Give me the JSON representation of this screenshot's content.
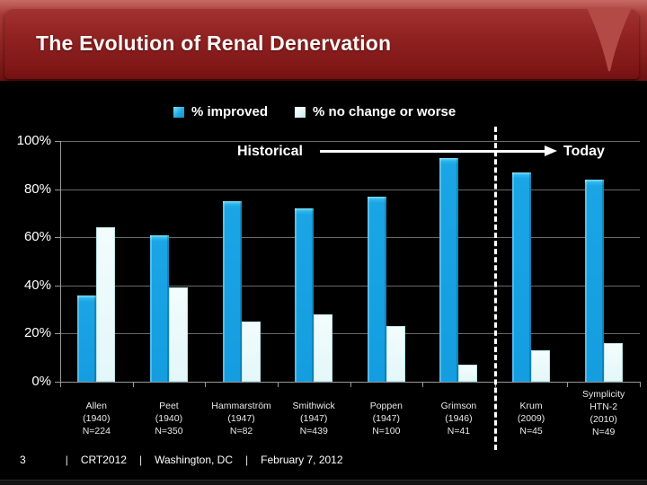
{
  "header": {
    "title": "The Evolution of Renal Denervation"
  },
  "legend": {
    "items": [
      {
        "label": "% improved",
        "color": "#1FA9E5"
      },
      {
        "label": "% no change or worse",
        "color": "#E6FAFB"
      }
    ]
  },
  "annotations": {
    "historical": "Historical",
    "today": "Today"
  },
  "chart_data": {
    "type": "bar",
    "title": "",
    "xlabel": "",
    "ylabel": "",
    "ylim": [
      0,
      100
    ],
    "yticks": [
      {
        "value": 0,
        "label": "0%"
      },
      {
        "value": 20,
        "label": "20%"
      },
      {
        "value": 40,
        "label": "40%"
      },
      {
        "value": 60,
        "label": "60%"
      },
      {
        "value": 80,
        "label": "80%"
      },
      {
        "value": 100,
        "label": "100%"
      }
    ],
    "grid": true,
    "legend_position": "top",
    "divider_at_boundary": 6,
    "categories": [
      {
        "lines": [
          "Allen",
          "(1940)",
          "N=224"
        ]
      },
      {
        "lines": [
          "Peet",
          "(1940)",
          "N=350"
        ]
      },
      {
        "lines": [
          "Hammarström",
          "(1947)",
          "N=82"
        ]
      },
      {
        "lines": [
          "Smithwick",
          "(1947)",
          "N=439"
        ]
      },
      {
        "lines": [
          "Poppen",
          "(1947)",
          "N=100"
        ]
      },
      {
        "lines": [
          "Grimson",
          "(1946)",
          "N=41"
        ]
      },
      {
        "lines": [
          "Krum",
          "(2009)",
          "N=45"
        ]
      },
      {
        "lines": [
          "Symplicity",
          "HTN-2",
          "(2010)",
          "N=49"
        ]
      }
    ],
    "series": [
      {
        "name": "% improved",
        "color": "#1FA9E5",
        "values": [
          36,
          61,
          75,
          72,
          77,
          93,
          87,
          84
        ]
      },
      {
        "name": "% no change or worse",
        "color": "#E6FAFB",
        "values": [
          64,
          39,
          25,
          28,
          23,
          7,
          13,
          16
        ]
      }
    ]
  },
  "footer": {
    "page": "3",
    "separator": "|",
    "conference": "CRT2012",
    "location": "Washington, DC",
    "date": "February 7, 2012"
  }
}
